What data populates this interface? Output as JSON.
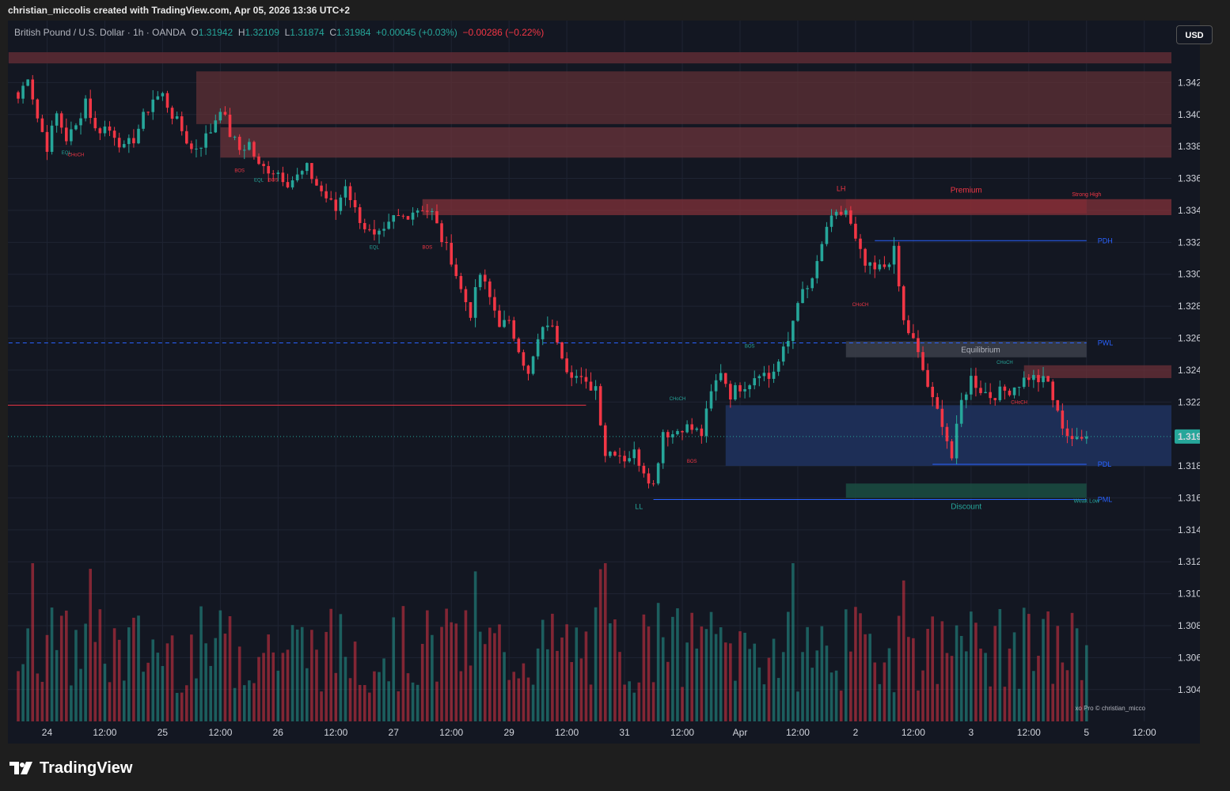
{
  "header": {
    "credit": "christian_miccolis created with TradingView.com, Apr 05, 2026 13:36 UTC+2"
  },
  "legend": {
    "symbol": "British Pound / U.S. Dollar · 1h · OANDA",
    "open_label": "O",
    "open": "1.31942",
    "high_label": "H",
    "high": "1.32109",
    "low_label": "L",
    "low": "1.31874",
    "close_label": "C",
    "close": "1.31984",
    "change": "+0.00045 (+0.03%)",
    "day_change": "−0.00286 (−0.22%)"
  },
  "currency": "USD",
  "watermark": "xo Pro © christian_micco",
  "brand": "TradingView",
  "colors": {
    "up": "#26a69a",
    "down": "#f23645",
    "background": "#131722",
    "discount_zone": "#2a3a6a",
    "premium_zone": "#6b3038"
  },
  "chart_data": {
    "type": "candlestick",
    "symbol": "GBPUSD",
    "interval": "1h",
    "ylim": [
      1.3028,
      1.3439
    ],
    "y_ticks": [
      "1.34200",
      "1.34000",
      "1.33800",
      "1.33600",
      "1.33400",
      "1.33200",
      "1.33000",
      "1.32800",
      "1.32600",
      "1.32400",
      "1.32200",
      "1.31984",
      "1.31800",
      "1.31600",
      "1.31400",
      "1.31200",
      "1.31000",
      "1.30800",
      "1.30600",
      "1.30400"
    ],
    "x_ticks": [
      {
        "label": "24",
        "bar": 6
      },
      {
        "label": "12:00",
        "bar": 18
      },
      {
        "label": "25",
        "bar": 30
      },
      {
        "label": "12:00",
        "bar": 42
      },
      {
        "label": "26",
        "bar": 54
      },
      {
        "label": "12:00",
        "bar": 66
      },
      {
        "label": "27",
        "bar": 78
      },
      {
        "label": "12:00",
        "bar": 90
      },
      {
        "label": "29",
        "bar": 102
      },
      {
        "label": "12:00",
        "bar": 114
      },
      {
        "label": "31",
        "bar": 126
      },
      {
        "label": "12:00",
        "bar": 138
      },
      {
        "label": "Apr",
        "bar": 150
      },
      {
        "label": "12:00",
        "bar": 162
      },
      {
        "label": "2",
        "bar": 174
      },
      {
        "label": "12:00",
        "bar": 186
      },
      {
        "label": "3",
        "bar": 198
      },
      {
        "label": "12:00",
        "bar": 210
      },
      {
        "label": "5",
        "bar": 222
      },
      {
        "label": "12:00",
        "bar": 234
      }
    ],
    "last_price": 1.31984,
    "anchors": [
      [
        0,
        1.341
      ],
      [
        2,
        1.3425
      ],
      [
        4,
        1.3398
      ],
      [
        6,
        1.338
      ],
      [
        8,
        1.34
      ],
      [
        10,
        1.3385
      ],
      [
        12,
        1.3392
      ],
      [
        14,
        1.341
      ],
      [
        16,
        1.339
      ],
      [
        18,
        1.3392
      ],
      [
        20,
        1.3388
      ],
      [
        22,
        1.3378
      ],
      [
        24,
        1.3385
      ],
      [
        26,
        1.3398
      ],
      [
        28,
        1.341
      ],
      [
        30,
        1.3412
      ],
      [
        32,
        1.34
      ],
      [
        34,
        1.339
      ],
      [
        36,
        1.3378
      ],
      [
        38,
        1.3382
      ],
      [
        40,
        1.339
      ],
      [
        42,
        1.3405
      ],
      [
        44,
        1.3388
      ],
      [
        46,
        1.3378
      ],
      [
        48,
        1.3382
      ],
      [
        50,
        1.3367
      ],
      [
        52,
        1.3366
      ],
      [
        54,
        1.3364
      ],
      [
        56,
        1.3358
      ],
      [
        58,
        1.3361
      ],
      [
        60,
        1.3366
      ],
      [
        62,
        1.3356
      ],
      [
        64,
        1.3348
      ],
      [
        66,
        1.334
      ],
      [
        68,
        1.3357
      ],
      [
        70,
        1.334
      ],
      [
        72,
        1.333
      ],
      [
        74,
        1.3322
      ],
      [
        76,
        1.3325
      ],
      [
        78,
        1.3335
      ],
      [
        80,
        1.3336
      ],
      [
        82,
        1.334
      ],
      [
        84,
        1.3342
      ],
      [
        86,
        1.3338
      ],
      [
        88,
        1.3322
      ],
      [
        90,
        1.331
      ],
      [
        92,
        1.329
      ],
      [
        94,
        1.3276
      ],
      [
        96,
        1.33
      ],
      [
        98,
        1.3285
      ],
      [
        100,
        1.327
      ],
      [
        102,
        1.3268
      ],
      [
        104,
        1.3255
      ],
      [
        106,
        1.3236
      ],
      [
        108,
        1.3258
      ],
      [
        110,
        1.327
      ],
      [
        112,
        1.326
      ],
      [
        114,
        1.3242
      ],
      [
        116,
        1.3236
      ],
      [
        118,
        1.323
      ],
      [
        120,
        1.323
      ],
      [
        122,
        1.3188
      ],
      [
        124,
        1.319
      ],
      [
        126,
        1.3185
      ],
      [
        128,
        1.3188
      ],
      [
        130,
        1.3178
      ],
      [
        132,
        1.3168
      ],
      [
        134,
        1.3202
      ],
      [
        136,
        1.32
      ],
      [
        138,
        1.3205
      ],
      [
        140,
        1.3203
      ],
      [
        142,
        1.32
      ],
      [
        144,
        1.3225
      ],
      [
        146,
        1.324
      ],
      [
        148,
        1.3225
      ],
      [
        150,
        1.323
      ],
      [
        152,
        1.3233
      ],
      [
        154,
        1.324
      ],
      [
        156,
        1.3235
      ],
      [
        158,
        1.3245
      ],
      [
        160,
        1.3258
      ],
      [
        162,
        1.3285
      ],
      [
        164,
        1.329
      ],
      [
        166,
        1.3305
      ],
      [
        168,
        1.333
      ],
      [
        170,
        1.3336
      ],
      [
        172,
        1.334
      ],
      [
        174,
        1.332
      ],
      [
        176,
        1.3305
      ],
      [
        178,
        1.3302
      ],
      [
        180,
        1.3305
      ],
      [
        182,
        1.3314
      ],
      [
        184,
        1.327
      ],
      [
        186,
        1.3258
      ],
      [
        188,
        1.324
      ],
      [
        190,
        1.322
      ],
      [
        192,
        1.3208
      ],
      [
        194,
        1.3185
      ],
      [
        196,
        1.322
      ],
      [
        198,
        1.3235
      ],
      [
        200,
        1.3228
      ],
      [
        202,
        1.3224
      ],
      [
        204,
        1.3226
      ],
      [
        206,
        1.3228
      ],
      [
        208,
        1.3232
      ],
      [
        210,
        1.3236
      ],
      [
        212,
        1.3234
      ],
      [
        214,
        1.3232
      ],
      [
        216,
        1.3212
      ],
      [
        218,
        1.32
      ],
      [
        220,
        1.3195
      ],
      [
        222,
        1.3198
      ]
    ],
    "zones": [
      {
        "name": "supply-zone-1",
        "from_bar": -2,
        "to_bar": 246,
        "y_top": 1.3439,
        "y_bottom": 1.3432
      },
      {
        "name": "supply-zone-2",
        "from_bar": 37,
        "to_bar": 246,
        "y_top": 1.3427,
        "y_bottom": 1.3394
      },
      {
        "name": "supply-zone-3",
        "from_bar": 42,
        "to_bar": 246,
        "y_top": 1.3392,
        "y_bottom": 1.3373
      },
      {
        "name": "supply-zone-4",
        "from_bar": 84,
        "to_bar": 246,
        "y_top": 1.3347,
        "y_bottom": 1.3337
      },
      {
        "name": "premium-zone",
        "from_bar": 172,
        "to_bar": 222,
        "y_top": 1.3347,
        "y_bottom": 1.3338
      },
      {
        "name": "equilibrium-zone",
        "from_bar": 172,
        "to_bar": 222,
        "y_top": 1.3258,
        "y_bottom": 1.3248
      },
      {
        "name": "discount-zone",
        "from_bar": 172,
        "to_bar": 222,
        "y_top": 1.3169,
        "y_bottom": 1.316
      },
      {
        "name": "demand-zone",
        "from_bar": 147,
        "to_bar": 246,
        "y_top": 1.3218,
        "y_bottom": 1.318
      },
      {
        "name": "supply-zone-5",
        "from_bar": 209,
        "to_bar": 246,
        "y_top": 1.3243,
        "y_bottom": 1.3235
      }
    ],
    "levels": [
      {
        "label": "PDH",
        "value": 1.3321,
        "from_bar": 178,
        "to_bar": 222,
        "color": "#2962ff"
      },
      {
        "label": "PWL",
        "value": 1.3257,
        "from_bar": -2,
        "to_bar": 222,
        "color": "#2962ff",
        "dashed": true
      },
      {
        "label": "PDL",
        "value": 1.3181,
        "from_bar": 190,
        "to_bar": 222,
        "color": "#2962ff"
      },
      {
        "label": "PML",
        "value": 1.3159,
        "from_bar": 132,
        "to_bar": 222,
        "color": "#2962ff"
      }
    ],
    "labels": {
      "premium": "Premium",
      "equilibrium": "Equilibrium",
      "discount": "Discount",
      "strong_high": "Strong High",
      "weak_low": "Weak Low",
      "lh": "LH",
      "ll": "LL",
      "eql": "EQL",
      "choch": "CHoCH",
      "bos": "BOS"
    }
  }
}
